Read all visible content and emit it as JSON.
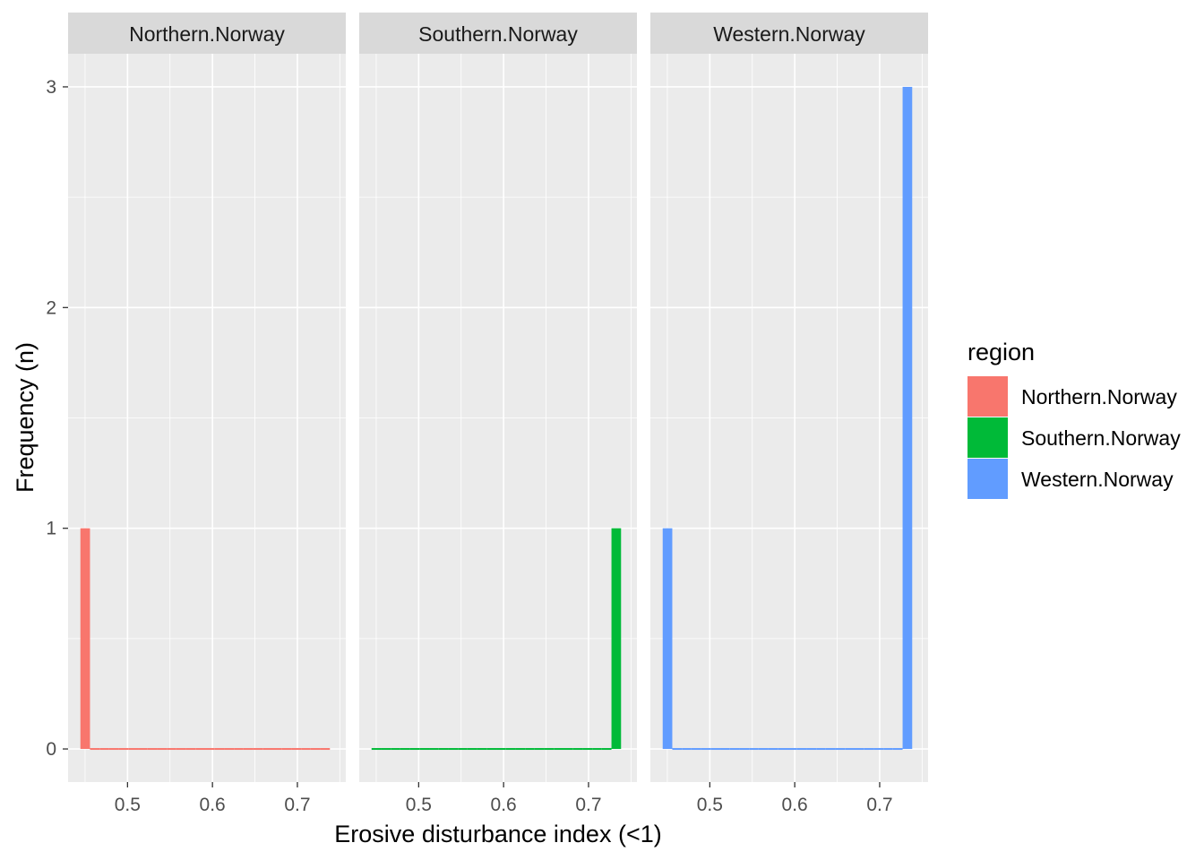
{
  "chart_data": {
    "type": "bar",
    "xlabel": "Erosive disturbance index (<1)",
    "ylabel": "Frequency (n)",
    "xlim": [
      0.43,
      0.757
    ],
    "ylim": [
      -0.15,
      3.15
    ],
    "x_ticks": [
      0.5,
      0.6,
      0.7
    ],
    "x_tick_labels": [
      "0.5",
      "0.6",
      "0.7"
    ],
    "y_ticks": [
      0,
      1,
      2,
      3
    ],
    "y_tick_labels": [
      "0",
      "1",
      "2",
      "3"
    ],
    "bin_width": 0.0113,
    "x_start": 0.4445,
    "n_bins": 26,
    "grid": true,
    "legend": {
      "title": "region",
      "placement": "right",
      "entries": [
        {
          "label": "Northern.Norway",
          "color": "#F8766D"
        },
        {
          "label": "Southern.Norway",
          "color": "#00BA38"
        },
        {
          "label": "Western.Norway",
          "color": "#619CFF"
        }
      ]
    },
    "panels": [
      {
        "strip": "Northern.Norway",
        "color": "#F8766D",
        "counts": [
          1,
          0,
          0,
          0,
          0,
          0,
          0,
          0,
          0,
          0,
          0,
          0,
          0,
          0,
          0,
          0,
          0,
          0,
          0,
          0,
          0,
          0,
          0,
          0,
          0,
          0
        ]
      },
      {
        "strip": "Southern.Norway",
        "color": "#00BA38",
        "counts": [
          0,
          0,
          0,
          0,
          0,
          0,
          0,
          0,
          0,
          0,
          0,
          0,
          0,
          0,
          0,
          0,
          0,
          0,
          0,
          0,
          0,
          0,
          0,
          0,
          0,
          1
        ]
      },
      {
        "strip": "Western.Norway",
        "color": "#619CFF",
        "counts": [
          1,
          0,
          0,
          0,
          0,
          0,
          0,
          0,
          0,
          0,
          0,
          0,
          0,
          0,
          0,
          0,
          0,
          0,
          0,
          0,
          0,
          0,
          0,
          0,
          0,
          3
        ]
      }
    ]
  }
}
